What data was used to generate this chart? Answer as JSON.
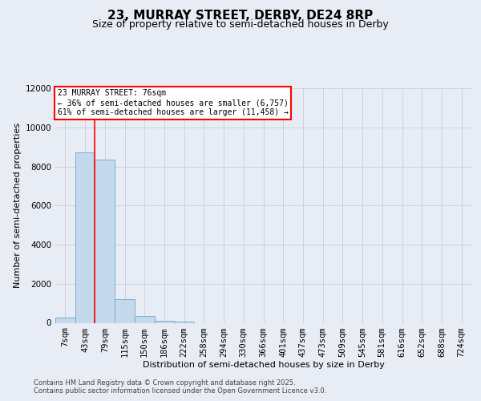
{
  "title": "23, MURRAY STREET, DERBY, DE24 8RP",
  "subtitle": "Size of property relative to semi-detached houses in Derby",
  "xlabel": "Distribution of semi-detached houses by size in Derby",
  "ylabel": "Number of semi-detached properties",
  "categories": [
    "7sqm",
    "43sqm",
    "79sqm",
    "115sqm",
    "150sqm",
    "186sqm",
    "222sqm",
    "258sqm",
    "294sqm",
    "330sqm",
    "366sqm",
    "401sqm",
    "437sqm",
    "473sqm",
    "509sqm",
    "545sqm",
    "581sqm",
    "616sqm",
    "652sqm",
    "688sqm",
    "724sqm"
  ],
  "values": [
    250,
    8700,
    8350,
    1200,
    350,
    100,
    50,
    0,
    0,
    0,
    0,
    0,
    0,
    0,
    0,
    0,
    0,
    0,
    0,
    0,
    0
  ],
  "bar_color": "#c5d9ec",
  "bar_edge_color": "#7aafd4",
  "property_line_x": 1.5,
  "property_label": "23 MURRAY STREET: 76sqm",
  "pct_smaller": 36,
  "pct_smaller_count": "6,757",
  "pct_larger": 61,
  "pct_larger_count": "11,458",
  "ylim": [
    0,
    12000
  ],
  "yticks": [
    0,
    2000,
    4000,
    6000,
    8000,
    10000,
    12000
  ],
  "background_color": "#e8ecf4",
  "grid_color": "#c8cdd8",
  "footnote1": "Contains HM Land Registry data © Crown copyright and database right 2025.",
  "footnote2": "Contains public sector information licensed under the Open Government Licence v3.0.",
  "title_fontsize": 11,
  "subtitle_fontsize": 9,
  "axis_label_fontsize": 8,
  "tick_fontsize": 7.5
}
